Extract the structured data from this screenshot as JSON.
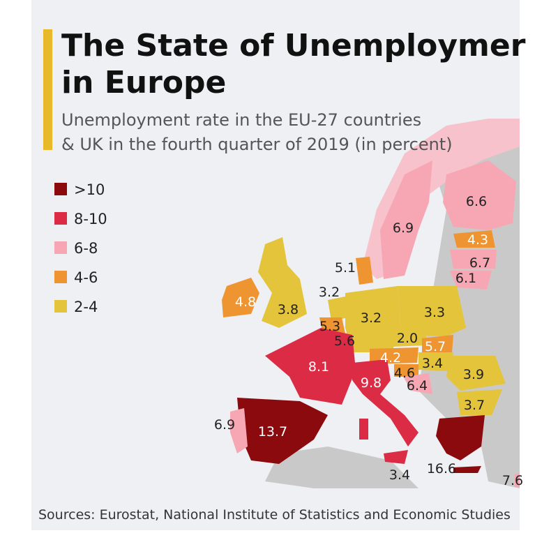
{
  "header": {
    "title_line1": "The State of Unemploymer",
    "title_line2": "in Europe",
    "subtitle_line1": "Unemployment rate in the EU-27 countries",
    "subtitle_line2": "& UK in the fourth quarter of 2019 (in percent)"
  },
  "legend": [
    {
      "label": ">10",
      "color": "#8b0a0e"
    },
    {
      "label": "8-10",
      "color": "#dc2b45"
    },
    {
      "label": "6-8",
      "color": "#f7a7b4"
    },
    {
      "label": "4-6",
      "color": "#ee9430"
    },
    {
      "label": "2-4",
      "color": "#e3c43a"
    }
  ],
  "map": {
    "labels": [
      "6.6",
      "6.9",
      "4.3",
      "6.7",
      "6.1",
      "5.1",
      "3.2",
      "4.8",
      "3.8",
      "3.2",
      "3.3",
      "5.3",
      "5.6",
      "2.0",
      "5.7",
      "4.2",
      "3.4",
      "8.1",
      "4.6",
      "6.4",
      "3.9",
      "9.8",
      "3.7",
      "6.9",
      "13.7",
      "3.4",
      "16.6",
      "7.6"
    ]
  },
  "footer": {
    "source": "Sources: Eurostat, National Institute of Statistics and Economic Studies"
  }
}
